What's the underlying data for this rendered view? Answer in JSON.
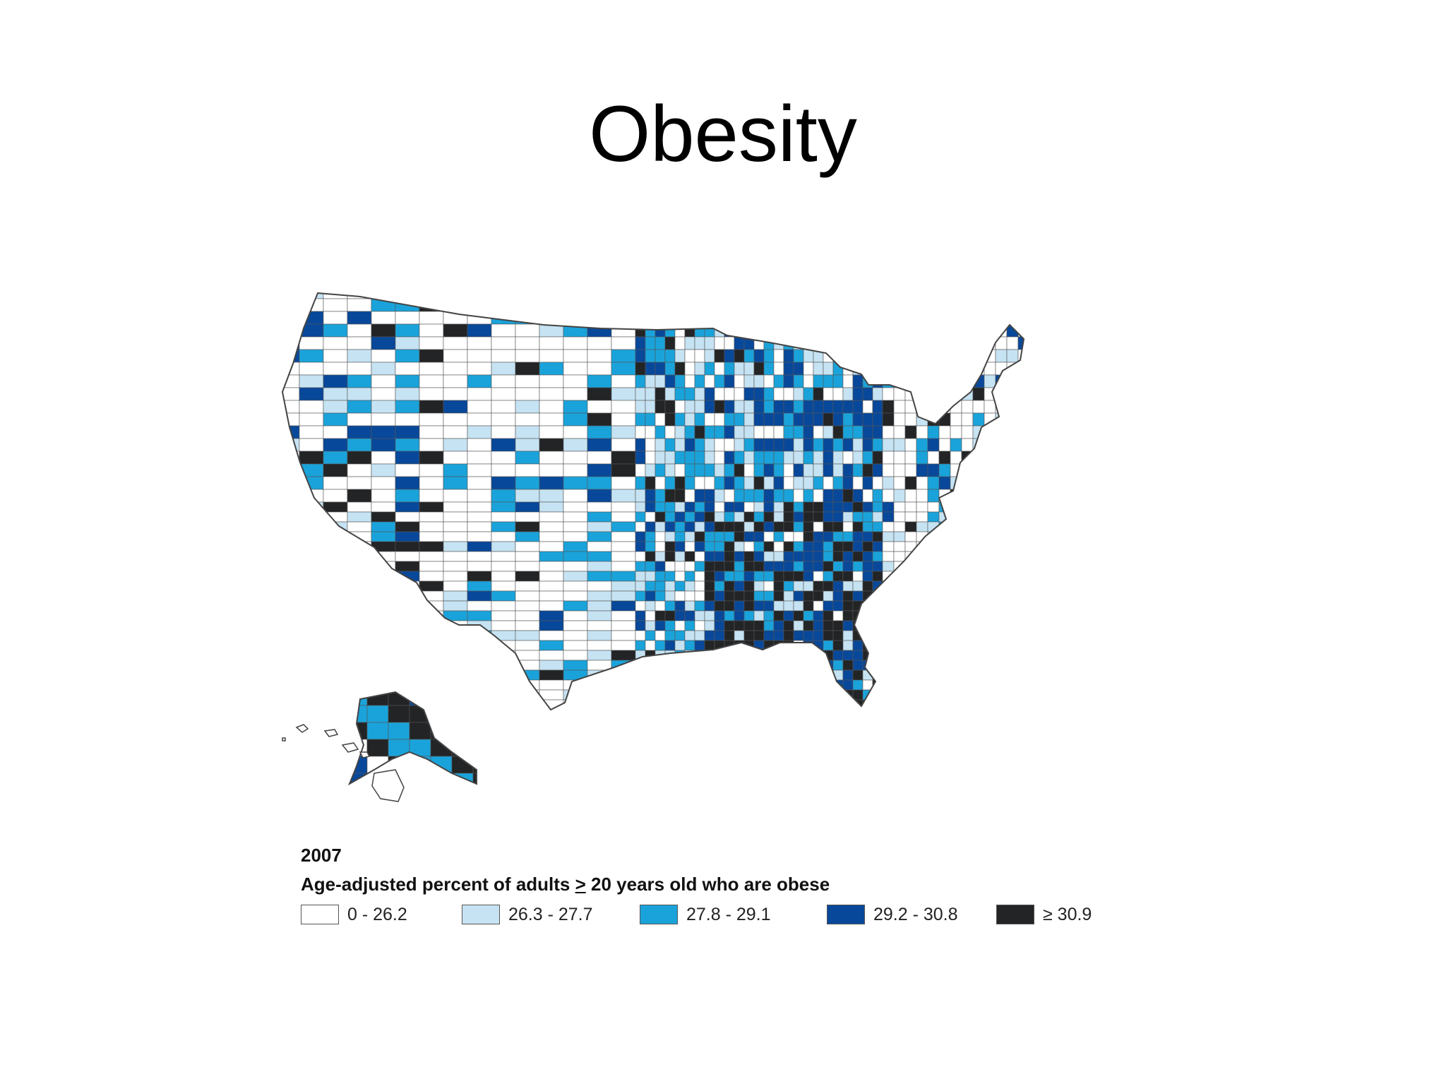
{
  "slide": {
    "title": "Obesity"
  },
  "map": {
    "year": "2007",
    "caption_prefix": "Age-adjusted percent of adults ",
    "caption_ge": ">",
    "caption_suffix": " 20 years old who are obese",
    "colors": {
      "c0": "#ffffff",
      "c1": "#c6e3f3",
      "c2": "#1aa3da",
      "c3": "#08489a",
      "c4": "#222426",
      "border": "#555555"
    },
    "legend": [
      {
        "label": "0 - 26.2",
        "color": "#ffffff"
      },
      {
        "label": "26.3 - 27.7",
        "color": "#c6e3f3"
      },
      {
        "label": "27.8 - 29.1",
        "color": "#1aa3da"
      },
      {
        "label": "29.2 - 30.8",
        "color": "#08489a"
      },
      {
        "label": "≥ 30.9",
        "color": "#222426"
      }
    ]
  }
}
